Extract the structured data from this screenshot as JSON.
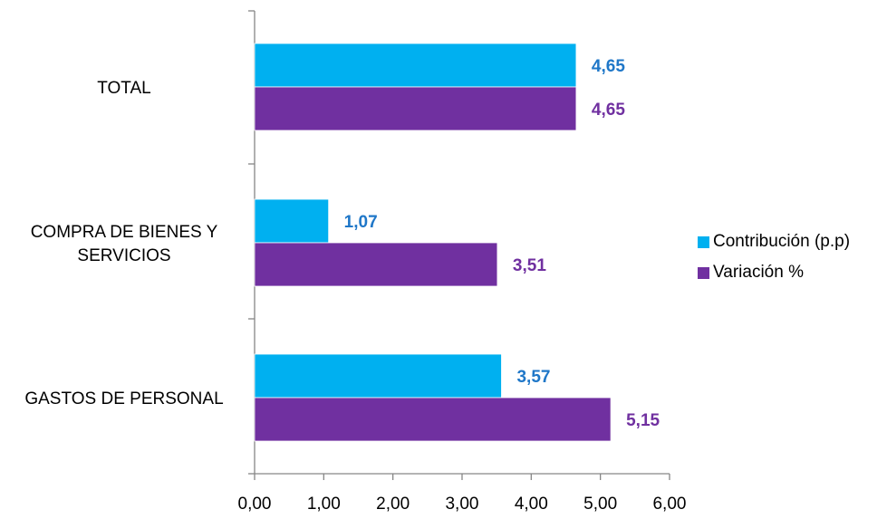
{
  "chart_data": {
    "type": "bar",
    "orientation": "horizontal",
    "categories": [
      "TOTAL",
      "COMPRA DE BIENES Y SERVICIOS",
      "GASTOS DE PERSONAL"
    ],
    "category_lines": [
      [
        "TOTAL"
      ],
      [
        "COMPRA DE BIENES Y",
        "SERVICIOS"
      ],
      [
        "GASTOS DE PERSONAL"
      ]
    ],
    "series": [
      {
        "name": "Contribución (p.p)",
        "color": "#00b0f0",
        "label_color": "#1f77c8",
        "values": [
          4.65,
          1.07,
          3.57
        ],
        "labels": [
          "4,65",
          "1,07",
          "3,57"
        ]
      },
      {
        "name": "Variación %",
        "color": "#7030a0",
        "label_color": "#7030a0",
        "values": [
          4.65,
          3.51,
          5.15
        ],
        "labels": [
          "4,65",
          "3,51",
          "5,15"
        ]
      }
    ],
    "xlim": [
      0,
      6
    ],
    "xticks": [
      "0,00",
      "1,00",
      "2,00",
      "3,00",
      "4,00",
      "5,00",
      "6,00"
    ],
    "grid": false,
    "legend_position": "right"
  }
}
